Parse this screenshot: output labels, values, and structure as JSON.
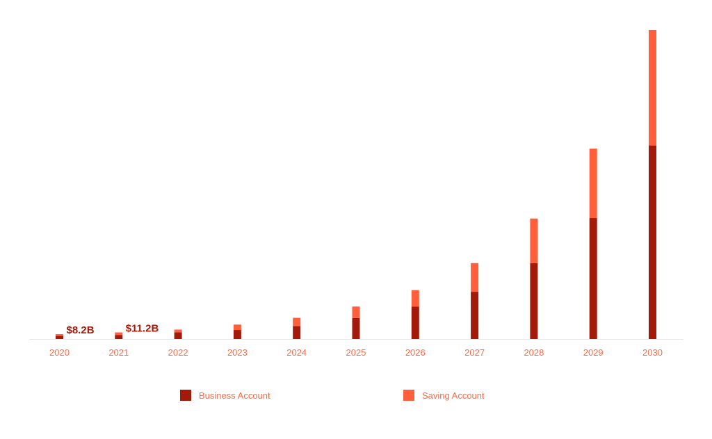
{
  "chart_data": {
    "type": "bar",
    "stacked": true,
    "categories": [
      "2020",
      "2021",
      "2022",
      "2023",
      "2024",
      "2025",
      "2026",
      "2027",
      "2028",
      "2029",
      "2030"
    ],
    "series": [
      {
        "name": "Business Account",
        "color": "#A31A0A",
        "values": [
          5.2,
          6.9,
          11.4,
          15.3,
          21.8,
          35.6,
          55.0,
          80.3,
          129.0,
          205.7,
          329.5
        ]
      },
      {
        "name": "Saving Account",
        "color": "#FF5F3A",
        "values": [
          3.0,
          4.3,
          4.6,
          9.2,
          14.2,
          19.6,
          28.2,
          48.9,
          76.0,
          118.4,
          196.7
        ]
      }
    ],
    "data_labels": [
      {
        "category": "2020",
        "text": "$8.2B"
      },
      {
        "category": "2021",
        "text": "$11.2B"
      }
    ],
    "title": "",
    "xlabel": "",
    "ylabel": "",
    "ylim": [
      0,
      540
    ],
    "grid": false,
    "legend_position": "bottom"
  },
  "colors": {
    "axis_line": "#E6E6E6",
    "tick_label": "#FF6A45",
    "data_label": "#A31A0A"
  }
}
